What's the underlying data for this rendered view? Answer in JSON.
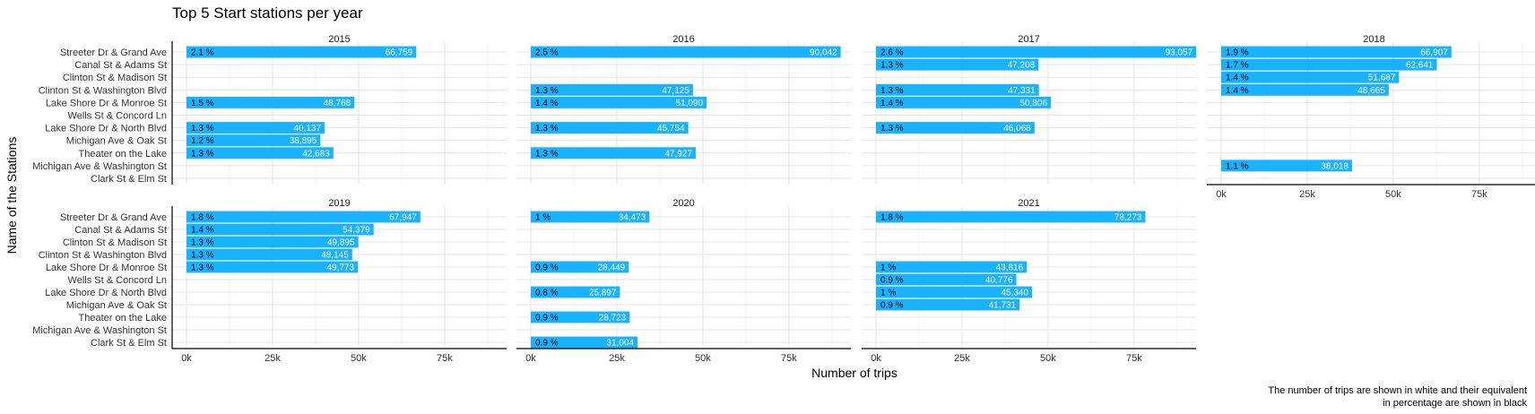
{
  "chart_data": {
    "type": "bar",
    "orientation": "horizontal",
    "title": "Top 5 Start stations per year",
    "xlabel": "Number of trips",
    "ylabel": "Name of the Stations",
    "caption_line1": "The number of trips are shown in white and their equivalent",
    "caption_line2": "in percentage are shown in black",
    "xlim": [
      0,
      93000
    ],
    "x_ticks": [
      0,
      25000,
      50000,
      75000
    ],
    "x_tick_labels": [
      "0k",
      "25k",
      "50k",
      "75k"
    ],
    "bar_color": "#1ab2ff",
    "stations": [
      "Streeter Dr & Grand Ave",
      "Canal St & Adams St",
      "Clinton St & Madison St",
      "Clinton St & Washington Blvd",
      "Lake Shore Dr & Monroe St",
      "Wells St & Concord Ln",
      "Lake Shore Dr & North Blvd",
      "Michigan Ave & Oak St",
      "Theater on the Lake",
      "Michigan Ave & Washington St",
      "Clark St & Elm St"
    ],
    "panels": [
      {
        "year": "2015",
        "bars": [
          {
            "station": "Streeter Dr & Grand Ave",
            "value": 66759,
            "value_label": "66,759",
            "pct_label": "2.1 %"
          },
          {
            "station": "Lake Shore Dr & Monroe St",
            "value": 48768,
            "value_label": "48,768",
            "pct_label": "1.5 %"
          },
          {
            "station": "Lake Shore Dr & North Blvd",
            "value": 40137,
            "value_label": "40,137",
            "pct_label": "1.3 %"
          },
          {
            "station": "Michigan Ave & Oak St",
            "value": 38895,
            "value_label": "38,895",
            "pct_label": "1.2 %"
          },
          {
            "station": "Theater on the Lake",
            "value": 42683,
            "value_label": "42,683",
            "pct_label": "1.3 %"
          }
        ]
      },
      {
        "year": "2016",
        "bars": [
          {
            "station": "Streeter Dr & Grand Ave",
            "value": 90042,
            "value_label": "90,042",
            "pct_label": "2.5 %"
          },
          {
            "station": "Clinton St & Washington Blvd",
            "value": 47125,
            "value_label": "47,125",
            "pct_label": "1.3 %"
          },
          {
            "station": "Lake Shore Dr & Monroe St",
            "value": 51090,
            "value_label": "51,090",
            "pct_label": "1.4 %"
          },
          {
            "station": "Lake Shore Dr & North Blvd",
            "value": 45754,
            "value_label": "45,754",
            "pct_label": "1.3 %"
          },
          {
            "station": "Theater on the Lake",
            "value": 47927,
            "value_label": "47,927",
            "pct_label": "1.3 %"
          }
        ]
      },
      {
        "year": "2017",
        "bars": [
          {
            "station": "Streeter Dr & Grand Ave",
            "value": 93057,
            "value_label": "93,057",
            "pct_label": "2.6 %"
          },
          {
            "station": "Canal St & Adams St",
            "value": 47208,
            "value_label": "47,208",
            "pct_label": "1.3 %"
          },
          {
            "station": "Clinton St & Washington Blvd",
            "value": 47331,
            "value_label": "47,331",
            "pct_label": "1.3 %"
          },
          {
            "station": "Lake Shore Dr & Monroe St",
            "value": 50806,
            "value_label": "50,806",
            "pct_label": "1.4 %"
          },
          {
            "station": "Lake Shore Dr & North Blvd",
            "value": 46068,
            "value_label": "46,068",
            "pct_label": "1.3 %"
          }
        ]
      },
      {
        "year": "2018",
        "bars": [
          {
            "station": "Streeter Dr & Grand Ave",
            "value": 66907,
            "value_label": "66,907",
            "pct_label": "1.9 %"
          },
          {
            "station": "Canal St & Adams St",
            "value": 62641,
            "value_label": "62,641",
            "pct_label": "1.7 %"
          },
          {
            "station": "Clinton St & Madison St",
            "value": 51687,
            "value_label": "51,687",
            "pct_label": "1.4 %"
          },
          {
            "station": "Clinton St & Washington Blvd",
            "value": 48665,
            "value_label": "48,665",
            "pct_label": "1.4 %"
          },
          {
            "station": "Michigan Ave & Washington St",
            "value": 38018,
            "value_label": "38,018",
            "pct_label": "1.1 %"
          }
        ]
      },
      {
        "year": "2019",
        "bars": [
          {
            "station": "Streeter Dr & Grand Ave",
            "value": 67947,
            "value_label": "67,947",
            "pct_label": "1.8 %"
          },
          {
            "station": "Canal St & Adams St",
            "value": 54379,
            "value_label": "54,379",
            "pct_label": "1.4 %"
          },
          {
            "station": "Clinton St & Madison St",
            "value": 49895,
            "value_label": "49,895",
            "pct_label": "1.3 %"
          },
          {
            "station": "Clinton St & Washington Blvd",
            "value": 48145,
            "value_label": "48,145",
            "pct_label": "1.3 %"
          },
          {
            "station": "Lake Shore Dr & Monroe St",
            "value": 49773,
            "value_label": "49,773",
            "pct_label": "1.3 %"
          }
        ]
      },
      {
        "year": "2020",
        "bars": [
          {
            "station": "Streeter Dr & Grand Ave",
            "value": 34473,
            "value_label": "34,473",
            "pct_label": "1 %"
          },
          {
            "station": "Lake Shore Dr & Monroe St",
            "value": 28449,
            "value_label": "28,449",
            "pct_label": "0.9 %"
          },
          {
            "station": "Lake Shore Dr & North Blvd",
            "value": 25897,
            "value_label": "25,897",
            "pct_label": "0.8 %"
          },
          {
            "station": "Theater on the Lake",
            "value": 28723,
            "value_label": "28,723",
            "pct_label": "0.9 %"
          },
          {
            "station": "Clark St & Elm St",
            "value": 31004,
            "value_label": "31,004",
            "pct_label": "0.9 %"
          }
        ]
      },
      {
        "year": "2021",
        "bars": [
          {
            "station": "Streeter Dr & Grand Ave",
            "value": 78273,
            "value_label": "78,273",
            "pct_label": "1.8 %"
          },
          {
            "station": "Lake Shore Dr & Monroe St",
            "value": 43816,
            "value_label": "43,816",
            "pct_label": "1 %"
          },
          {
            "station": "Wells St & Concord Ln",
            "value": 40776,
            "value_label": "40,776",
            "pct_label": "0.9 %"
          },
          {
            "station": "Lake Shore Dr & North Blvd",
            "value": 45340,
            "value_label": "45,340",
            "pct_label": "1 %"
          },
          {
            "station": "Michigan Ave & Oak St",
            "value": 41731,
            "value_label": "41,731",
            "pct_label": "0.9 %"
          }
        ]
      }
    ]
  }
}
